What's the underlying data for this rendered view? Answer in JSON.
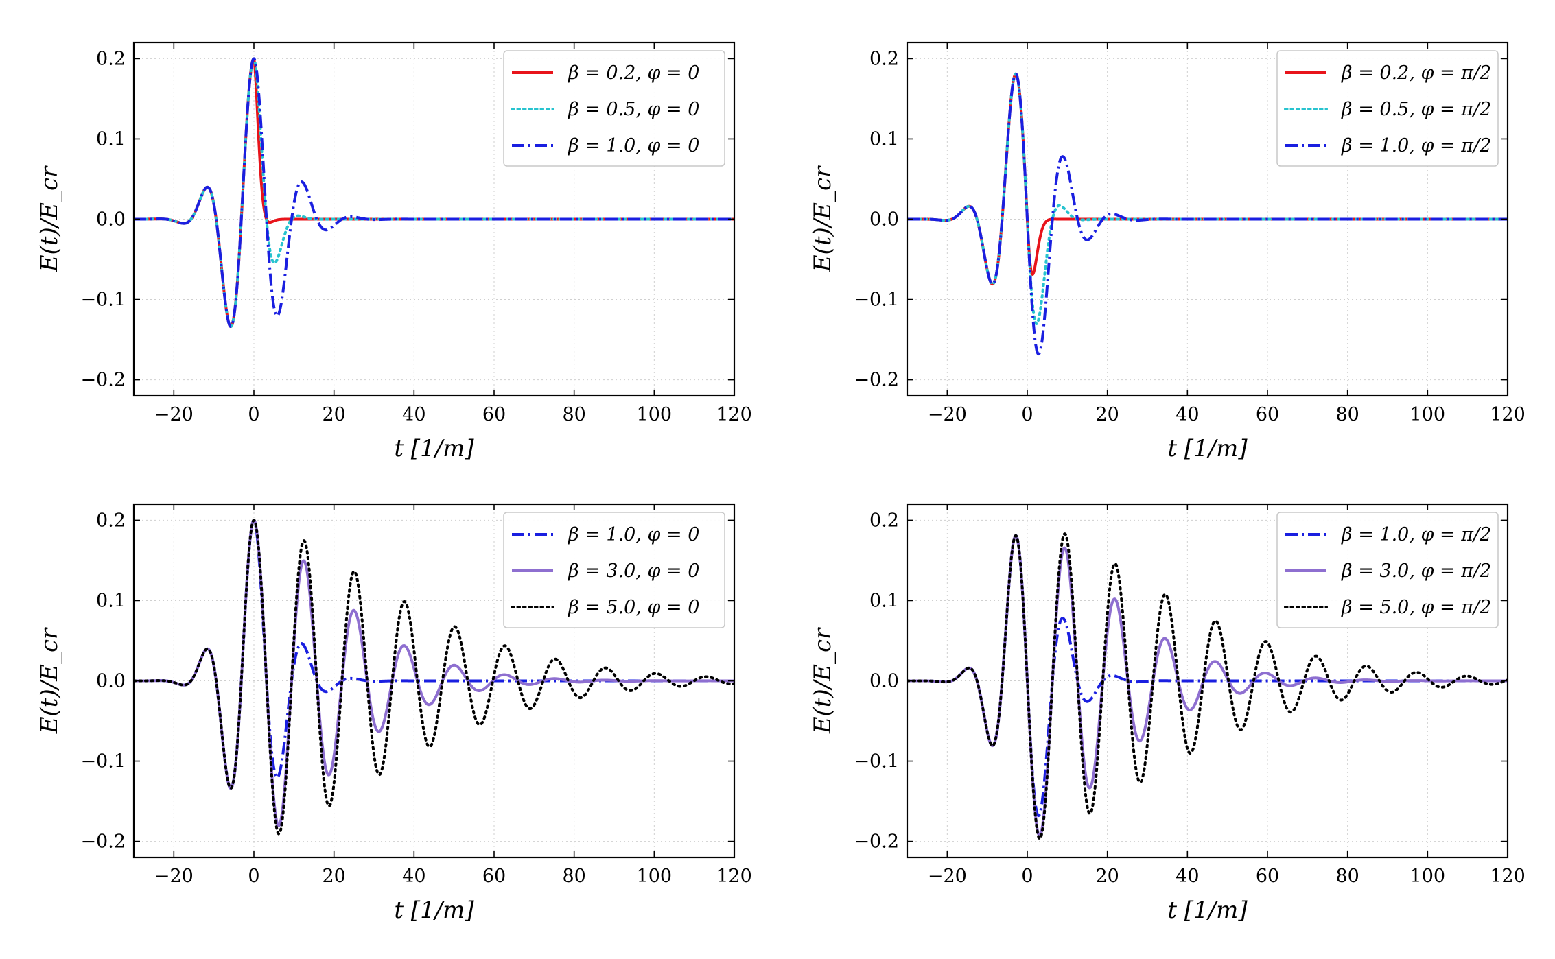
{
  "figure": {
    "xlabel": "t [1/m]",
    "ylabel": "E(t)/E_cr"
  },
  "chart_data": [
    {
      "type": "line",
      "position": "top-left",
      "phi": 0,
      "xlim": [
        -30,
        120
      ],
      "ylim": [
        -0.22,
        0.22
      ],
      "xticks": [
        -20,
        0,
        20,
        40,
        60,
        80,
        100,
        120
      ],
      "yticks": [
        -0.2,
        -0.1,
        0.0,
        0.1,
        0.2
      ],
      "xtick_labels": [
        "−20",
        "0",
        "20",
        "40",
        "60",
        "80",
        "100",
        "120"
      ],
      "ytick_labels": [
        "−0.2",
        "−0.1",
        "0.0",
        "0.1",
        "0.2"
      ],
      "xlabel": "t [1/m]",
      "ylabel": "E(t)/E_cr",
      "legend": "top-right",
      "series": [
        {
          "name": "β = 0.2,  φ = 0",
          "beta": 0.2,
          "color": "#e8141b",
          "style": "solid"
        },
        {
          "name": "β = 0.5,  φ = 0",
          "beta": 0.5,
          "color": "#27c3cf",
          "style": "dotted"
        },
        {
          "name": "β = 1.0,  φ = 0",
          "beta": 1.0,
          "color": "#1a1fe0",
          "style": "dashdot"
        }
      ]
    },
    {
      "type": "line",
      "position": "top-right",
      "phi": 1.5707963,
      "xlim": [
        -30,
        120
      ],
      "ylim": [
        -0.22,
        0.22
      ],
      "xticks": [
        -20,
        0,
        20,
        40,
        60,
        80,
        100,
        120
      ],
      "yticks": [
        -0.2,
        -0.1,
        0.0,
        0.1,
        0.2
      ],
      "xtick_labels": [
        "−20",
        "0",
        "20",
        "40",
        "60",
        "80",
        "100",
        "120"
      ],
      "ytick_labels": [
        "−0.2",
        "−0.1",
        "0.0",
        "0.1",
        "0.2"
      ],
      "xlabel": "t [1/m]",
      "ylabel": "E(t)/E_cr",
      "legend": "top-right",
      "series": [
        {
          "name": "β = 0.2,  φ = π/2",
          "beta": 0.2,
          "color": "#e8141b",
          "style": "solid"
        },
        {
          "name": "β = 0.5,  φ = π/2",
          "beta": 0.5,
          "color": "#27c3cf",
          "style": "dotted"
        },
        {
          "name": "β = 1.0,  φ = π/2",
          "beta": 1.0,
          "color": "#1a1fe0",
          "style": "dashdot"
        }
      ]
    },
    {
      "type": "line",
      "position": "bottom-left",
      "phi": 0,
      "xlim": [
        -30,
        120
      ],
      "ylim": [
        -0.22,
        0.22
      ],
      "xticks": [
        -20,
        0,
        20,
        40,
        60,
        80,
        100,
        120
      ],
      "yticks": [
        -0.2,
        -0.1,
        0.0,
        0.1,
        0.2
      ],
      "xtick_labels": [
        "−20",
        "0",
        "20",
        "40",
        "60",
        "80",
        "100",
        "120"
      ],
      "ytick_labels": [
        "−0.2",
        "−0.1",
        "0.0",
        "0.1",
        "0.2"
      ],
      "xlabel": "t [1/m]",
      "ylabel": "E(t)/E_cr",
      "legend": "top-right",
      "series": [
        {
          "name": "β = 1.0,  φ = 0",
          "beta": 1.0,
          "color": "#1a1fe0",
          "style": "dashdot"
        },
        {
          "name": "β = 3.0,  φ = 0",
          "beta": 3.0,
          "color": "#8e6fd0",
          "style": "solid"
        },
        {
          "name": "β = 5.0,  φ = 0",
          "beta": 5.0,
          "color": "#000000",
          "style": "dotted"
        }
      ]
    },
    {
      "type": "line",
      "position": "bottom-right",
      "phi": 1.5707963,
      "xlim": [
        -30,
        120
      ],
      "ylim": [
        -0.22,
        0.22
      ],
      "xticks": [
        -20,
        0,
        20,
        40,
        60,
        80,
        100,
        120
      ],
      "yticks": [
        -0.2,
        -0.1,
        0.0,
        0.1,
        0.2
      ],
      "xtick_labels": [
        "−20",
        "0",
        "20",
        "40",
        "60",
        "80",
        "100",
        "120"
      ],
      "ytick_labels": [
        "−0.2",
        "−0.1",
        "0.0",
        "0.1",
        "0.2"
      ],
      "xlabel": "t [1/m]",
      "ylabel": "E(t)/E_cr",
      "legend": "top-right",
      "series": [
        {
          "name": "β = 1.0,  φ = π/2",
          "beta": 1.0,
          "color": "#1a1fe0",
          "style": "dashdot"
        },
        {
          "name": "β = 3.0,  φ = π/2",
          "beta": 3.0,
          "color": "#8e6fd0",
          "style": "solid"
        },
        {
          "name": "β = 5.0,  φ = π/2",
          "beta": 5.0,
          "color": "#000000",
          "style": "dotted"
        }
      ]
    }
  ]
}
